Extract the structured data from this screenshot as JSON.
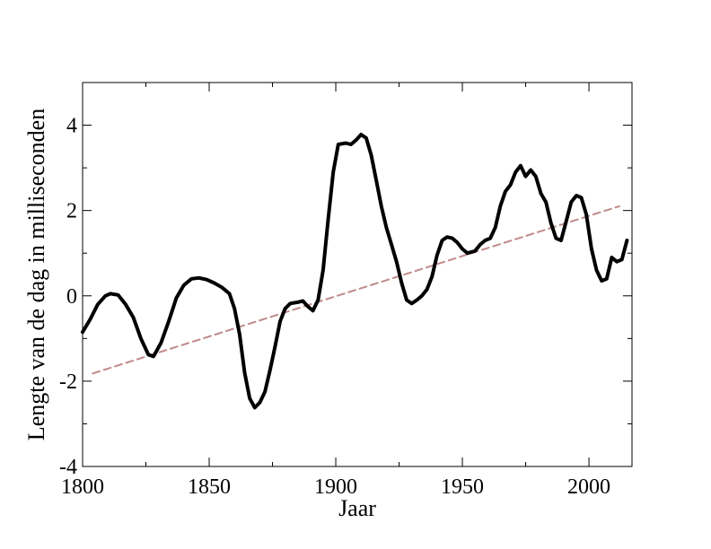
{
  "chart_data": {
    "type": "line",
    "xlabel": "Jaar",
    "ylabel": "Lengte van de dag in milliseconden",
    "xlim": [
      1800,
      2017
    ],
    "ylim": [
      -4,
      5
    ],
    "x_ticks": [
      1800,
      1850,
      1900,
      1950,
      2000
    ],
    "y_ticks": [
      -4,
      -2,
      0,
      2,
      4
    ],
    "grid": false,
    "legend": "none",
    "series": [
      {
        "style": "solid",
        "color": "#000000",
        "x": [
          1800,
          1803,
          1806,
          1809,
          1811,
          1814,
          1817,
          1820,
          1823,
          1826,
          1828,
          1831,
          1834,
          1837,
          1840,
          1843,
          1846,
          1849,
          1852,
          1855,
          1858,
          1860,
          1862,
          1864,
          1866,
          1868,
          1870,
          1872,
          1874,
          1876,
          1878,
          1880,
          1882,
          1885,
          1887,
          1889,
          1891,
          1893,
          1895,
          1897,
          1899,
          1901,
          1904,
          1906,
          1908,
          1910,
          1912,
          1914,
          1916,
          1918,
          1920,
          1922,
          1924,
          1926,
          1928,
          1930,
          1932,
          1934,
          1936,
          1938,
          1940,
          1942,
          1944,
          1946,
          1948,
          1950,
          1952,
          1955,
          1957,
          1959,
          1961,
          1963,
          1965,
          1967,
          1969,
          1971,
          1973,
          1975,
          1977,
          1979,
          1981,
          1983,
          1985,
          1987,
          1989,
          1991,
          1993,
          1995,
          1997,
          1999,
          2001,
          2003,
          2005,
          2007,
          2009,
          2011,
          2013,
          2015
        ],
        "y": [
          -0.85,
          -0.55,
          -0.2,
          0.0,
          0.05,
          0.02,
          -0.2,
          -0.5,
          -1.0,
          -1.38,
          -1.42,
          -1.1,
          -0.6,
          -0.05,
          0.25,
          0.4,
          0.42,
          0.38,
          0.3,
          0.2,
          0.05,
          -0.3,
          -0.9,
          -1.8,
          -2.4,
          -2.62,
          -2.5,
          -2.25,
          -1.75,
          -1.2,
          -0.6,
          -0.3,
          -0.18,
          -0.15,
          -0.12,
          -0.25,
          -0.35,
          -0.1,
          0.6,
          1.8,
          2.9,
          3.55,
          3.58,
          3.55,
          3.65,
          3.78,
          3.7,
          3.3,
          2.7,
          2.1,
          1.6,
          1.2,
          0.8,
          0.3,
          -0.1,
          -0.18,
          -0.1,
          0.0,
          0.15,
          0.45,
          0.95,
          1.3,
          1.38,
          1.35,
          1.25,
          1.1,
          1.0,
          1.05,
          1.2,
          1.3,
          1.35,
          1.6,
          2.1,
          2.45,
          2.6,
          2.9,
          3.05,
          2.8,
          2.95,
          2.8,
          2.4,
          2.2,
          1.7,
          1.35,
          1.3,
          1.75,
          2.2,
          2.35,
          2.3,
          1.9,
          1.1,
          0.6,
          0.35,
          0.4,
          0.9,
          0.8,
          0.85,
          1.3
        ]
      },
      {
        "style": "dashed",
        "color": "#c08a8a",
        "x": [
          1804,
          2012
        ],
        "y": [
          -1.82,
          2.1
        ]
      }
    ]
  }
}
